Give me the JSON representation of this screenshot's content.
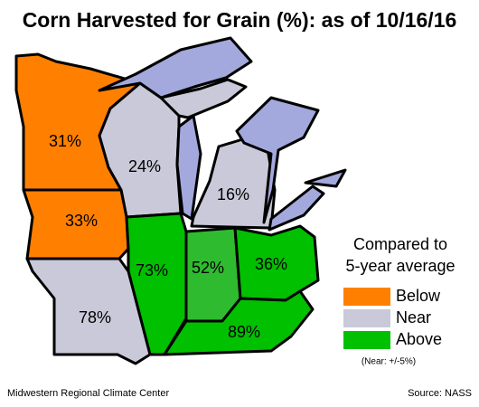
{
  "title": "Corn Harvested for Grain (%):  as of 10/16/16",
  "map": {
    "values": [
      31,
      24,
      16,
      33,
      73,
      52,
      36,
      78,
      89
    ],
    "value_labels": [
      "31%",
      "24%",
      "16%",
      "33%",
      "73%",
      "52%",
      "36%",
      "78%",
      "89%"
    ],
    "colors": [
      "#ff8000",
      "#c9c9d9",
      "#c9c9d9",
      "#ff8000",
      "#00c000",
      "#2fbb2f",
      "#00c000",
      "#c9c9d9",
      "#00c000"
    ]
  },
  "legend": {
    "title": [
      "Compared to",
      "5-year average"
    ],
    "items": [
      {
        "label": "Below",
        "color": "#ff8000"
      },
      {
        "label": "Near",
        "color": "#c9c9d9"
      },
      {
        "label": "Above",
        "color": "#00c000"
      }
    ],
    "note": "(Near: +/-5%)"
  },
  "footer": {
    "left": "Midwestern Regional Climate Center",
    "right": "Source: NASS"
  }
}
